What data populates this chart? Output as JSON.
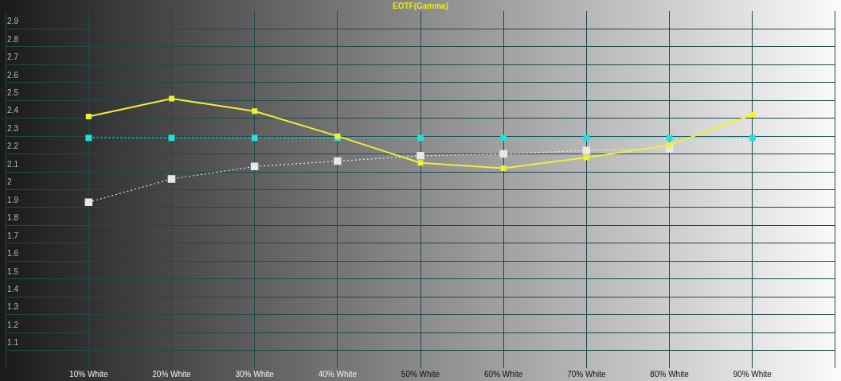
{
  "chart_data": {
    "type": "line",
    "title": "EOTF(Gamma)",
    "categories": [
      "10% White",
      "20% White",
      "30% White",
      "40% White",
      "50% White",
      "60% White",
      "70% White",
      "80% White",
      "90% White"
    ],
    "series": [
      {
        "color": "#f0f030",
        "line_style": "solid",
        "values": [
          2.41,
          2.51,
          2.44,
          2.3,
          2.15,
          2.12,
          2.18,
          2.25,
          2.42
        ]
      },
      {
        "color": "#20e0e0",
        "line_style": "dotted",
        "values": [
          2.29,
          2.29,
          2.29,
          2.29,
          2.29,
          2.29,
          2.29,
          2.29,
          2.29
        ]
      },
      {
        "color": "#e8e8e8",
        "line_style": "dotted",
        "values": [
          1.93,
          2.06,
          2.13,
          2.16,
          2.19,
          2.2,
          2.22,
          2.23,
          null
        ]
      }
    ],
    "ylim": [
      1.0,
      3.0
    ],
    "yticks": [
      1.1,
      1.2,
      1.3,
      1.4,
      1.5,
      1.6,
      1.7,
      1.8,
      1.9,
      2,
      2.1,
      2.2,
      2.3,
      2.4,
      2.5,
      2.6,
      2.7,
      2.8,
      2.9
    ],
    "grid": true,
    "marker": "square",
    "legend": false
  }
}
